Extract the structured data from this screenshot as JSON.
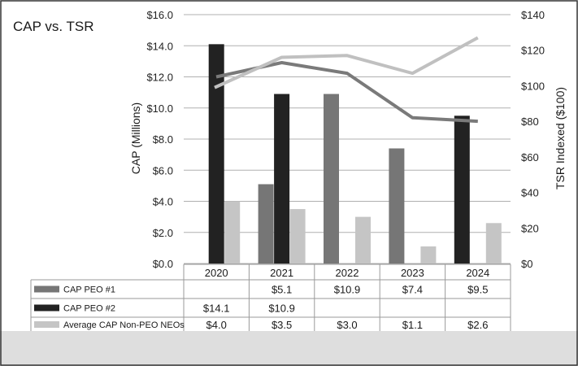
{
  "colors": {
    "cap_peo_1": "#767676",
    "cap_peo_2": "#222222",
    "avg_cap_non_peo": "#c5c5c5",
    "tsr_company_line": "#7a7a7a",
    "tsr_peer_line": "#c0c0c0",
    "bottom_band": "#dedede"
  },
  "chart_data": {
    "type": "bar",
    "title": "CAP vs. TSR",
    "ylabel_left": "CAP (Millions)",
    "ylabel_right": "TSR Indexed ($100)",
    "categories": [
      "2020",
      "2021",
      "2022",
      "2023",
      "2024"
    ],
    "ylim_left": [
      0,
      16
    ],
    "yticks_left": [
      "$0.0",
      "$2.0",
      "$4.0",
      "$6.0",
      "$8.0",
      "$10.0",
      "$12.0",
      "$14.0",
      "$16.0"
    ],
    "ylim_right": [
      0,
      140
    ],
    "yticks_right": [
      "$0",
      "$20",
      "$40",
      "$60",
      "$80",
      "$100",
      "$120",
      "$140"
    ],
    "grid": true,
    "series": [
      {
        "name": "CAP PEO #1",
        "values": [
          null,
          5.1,
          10.9,
          7.4,
          9.5
        ],
        "labels": [
          "",
          "$5.1",
          "$10.9",
          "$7.4",
          "$9.5"
        ]
      },
      {
        "name": "CAP PEO #2",
        "values": [
          14.1,
          10.9,
          null,
          null,
          null
        ],
        "labels": [
          "$14.1",
          "$10.9",
          "",
          "",
          ""
        ]
      },
      {
        "name": "Average CAP Non-PEO NEOs",
        "values": [
          4.0,
          3.5,
          3.0,
          1.1,
          2.6
        ],
        "labels": [
          "$4.0",
          "$3.5",
          "$3.0",
          "$1.1",
          "$2.6"
        ]
      }
    ],
    "bar_color_override": [
      {
        "category": "2024",
        "series": "CAP PEO #1",
        "color": "#222222"
      }
    ],
    "lines": [
      {
        "values": [
          105,
          113,
          107,
          82,
          80
        ]
      },
      {
        "values": [
          99,
          116,
          117,
          107,
          127
        ]
      }
    ]
  }
}
